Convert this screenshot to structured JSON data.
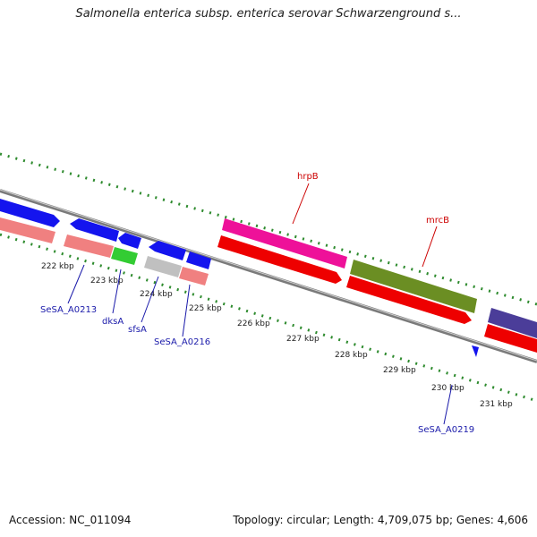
{
  "title": "Salmonella enterica subsp. enterica serovar Schwarzenground s...",
  "footer": {
    "accession": "Accession: NC_011094",
    "summary": "Topology: circular; Length: 4,709,075 bp; Genes: 4,606"
  },
  "ticks": [
    "222 kbp",
    "223 kbp",
    "224 kbp",
    "225 kbp",
    "226 kbp",
    "227 kbp",
    "228 kbp",
    "229 kbp",
    "230 kbp",
    "231 kbp"
  ],
  "genes_labeled": {
    "hrpB": "hrpB",
    "mrcB": "mrcB",
    "SeSA_A0213": "SeSA_A0213",
    "dksA": "dksA",
    "sfsA": "sfsA",
    "SeSA_A0216": "SeSA_A0216",
    "SeSA_A0219": "SeSA_A0219"
  },
  "colors": {
    "backbone": "#8a8a8a",
    "dots": "#2e8b2e",
    "blue_gene": "#1414ee",
    "pink_gene": "#f08080",
    "red_gene": "#ee0000",
    "magenta_gene": "#ee1199",
    "olive_gene": "#6b8e23",
    "green_gene": "#33cc33",
    "gray_gene": "#c0c0c0",
    "navy_gene": "#4b3d99",
    "label_red": "#cc0000",
    "label_blue": "#1a1aaa"
  }
}
